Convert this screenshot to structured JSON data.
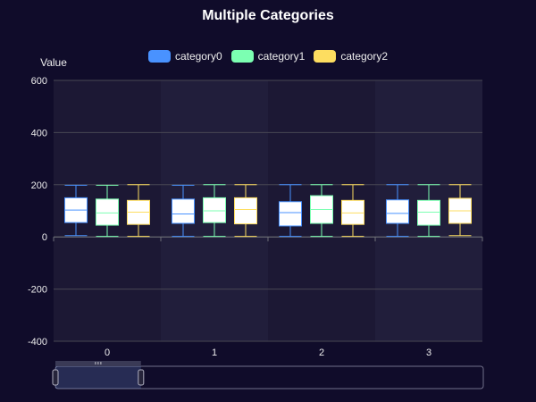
{
  "chart_data": {
    "type": "boxplot",
    "title": "Multiple Categories",
    "ylabel": "Value",
    "xlabel": "",
    "categories": [
      "0",
      "1",
      "2",
      "3"
    ],
    "ylim": [
      -400,
      600
    ],
    "yticks": [
      -400,
      -200,
      0,
      200,
      400,
      600
    ],
    "legend_position": "top-center",
    "grid": true,
    "series": [
      {
        "name": "category0",
        "color": "#4992ff",
        "boxes": [
          {
            "min": 5,
            "q1": 55,
            "median": 103,
            "q3": 150,
            "max": 198
          },
          {
            "min": 2,
            "q1": 52,
            "median": 88,
            "q3": 145,
            "max": 198
          },
          {
            "min": 2,
            "q1": 42,
            "median": 93,
            "q3": 135,
            "max": 200
          },
          {
            "min": 2,
            "q1": 52,
            "median": 90,
            "q3": 142,
            "max": 200
          }
        ]
      },
      {
        "name": "category1",
        "color": "#7cffb2",
        "boxes": [
          {
            "min": 2,
            "q1": 45,
            "median": 92,
            "q3": 145,
            "max": 198
          },
          {
            "min": 2,
            "q1": 55,
            "median": 100,
            "q3": 150,
            "max": 200
          },
          {
            "min": 2,
            "q1": 52,
            "median": 105,
            "q3": 158,
            "max": 200
          },
          {
            "min": 2,
            "q1": 45,
            "median": 95,
            "q3": 140,
            "max": 200
          }
        ]
      },
      {
        "name": "category2",
        "color": "#fddd60",
        "boxes": [
          {
            "min": 2,
            "q1": 48,
            "median": 95,
            "q3": 140,
            "max": 200
          },
          {
            "min": 2,
            "q1": 50,
            "median": 105,
            "q3": 150,
            "max": 200
          },
          {
            "min": 2,
            "q1": 48,
            "median": 92,
            "q3": 140,
            "max": 200
          },
          {
            "min": 5,
            "q1": 52,
            "median": 100,
            "q3": 148,
            "max": 200
          }
        ]
      }
    ],
    "data_zoom": {
      "start_fraction": 0,
      "end_fraction": 0.2
    }
  }
}
